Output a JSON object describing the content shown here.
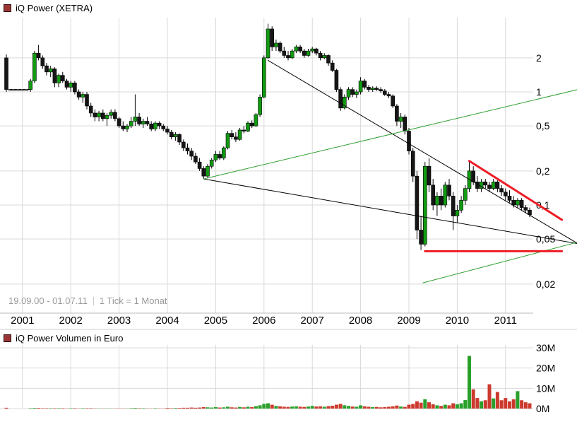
{
  "price_chart": {
    "legend": {
      "title": "iQ Power (XETRA)",
      "marker_color": "#9b3434"
    },
    "footer": {
      "range": "19.09.00 - 01.07.11",
      "tick_info": "1 Tick = 1 Monat"
    }
  },
  "volume_chart": {
    "legend": {
      "title": "iQ Power Volumen in Euro",
      "marker_color": "#9b3434"
    }
  },
  "chart_data": [
    {
      "type": "candlestick",
      "title": "iQ Power (XETRA)",
      "x_axis": {
        "first_candle": "2000-09",
        "last_candle": "2011-07",
        "tick_interval": "1 Monat",
        "year_labels": [
          "2001",
          "2002",
          "2003",
          "2004",
          "2005",
          "2006",
          "2007",
          "2008",
          "2009",
          "2010",
          "2011"
        ]
      },
      "y_axis": {
        "scale": "log",
        "tick_labels": [
          "2",
          "1",
          "0,5",
          "0,2",
          "0,1",
          "0,05",
          "0,02"
        ],
        "tick_values": [
          2,
          1,
          0.5,
          0.2,
          0.1,
          0.05,
          0.02
        ]
      },
      "colors": {
        "up_candle": "#119b11",
        "down_candle": "#161616",
        "volume_up": "#2aa02a",
        "volume_down": "#cc3a2e",
        "grid": "#d9d9d9",
        "axis_line": "#bbbbbb",
        "separator": "#cccccc",
        "trend_black": "#000000",
        "trend_green": "#2e9e2e",
        "trend_red": "#ee1c25",
        "axis_text": "#000000",
        "footer_text": "#9a9a9a",
        "legend_marker": "#9b3434"
      },
      "candles": [
        [
          "2000-09",
          2.0,
          2.15,
          1.0,
          1.05,
          0.4
        ],
        [
          "2000-10",
          1.05,
          1.05,
          1.05,
          1.05,
          0
        ],
        [
          "2000-11",
          1.05,
          1.05,
          1.05,
          1.05,
          0
        ],
        [
          "2000-12",
          1.05,
          1.05,
          1.05,
          1.05,
          0
        ],
        [
          "2001-01",
          1.05,
          1.05,
          1.05,
          1.05,
          0
        ],
        [
          "2001-02",
          1.05,
          1.05,
          1.05,
          1.05,
          0
        ],
        [
          "2001-03",
          1.05,
          1.3,
          1.0,
          1.25,
          0.2
        ],
        [
          "2001-04",
          1.25,
          2.3,
          1.2,
          2.2,
          0.3
        ],
        [
          "2001-05",
          2.2,
          2.6,
          1.9,
          2.0,
          0.3
        ],
        [
          "2001-06",
          2.0,
          2.1,
          1.6,
          1.7,
          0.2
        ],
        [
          "2001-07",
          1.7,
          1.8,
          1.4,
          1.5,
          0.2
        ],
        [
          "2001-08",
          1.5,
          1.7,
          1.35,
          1.6,
          0.2
        ],
        [
          "2001-09",
          1.6,
          1.65,
          1.1,
          1.2,
          0.2
        ],
        [
          "2001-10",
          1.2,
          1.45,
          1.1,
          1.4,
          0.2
        ],
        [
          "2001-11",
          1.4,
          1.5,
          1.2,
          1.25,
          0.2
        ],
        [
          "2001-12",
          1.25,
          1.3,
          1.05,
          1.1,
          0.1
        ],
        [
          "2002-01",
          1.1,
          1.25,
          1.0,
          1.2,
          0.2
        ],
        [
          "2002-02",
          1.2,
          1.25,
          0.95,
          1.0,
          0.2
        ],
        [
          "2002-03",
          1.0,
          1.05,
          0.85,
          0.9,
          0.1
        ],
        [
          "2002-04",
          0.9,
          1.0,
          0.8,
          0.95,
          0.2
        ],
        [
          "2002-05",
          0.95,
          1.0,
          0.7,
          0.75,
          0.2
        ],
        [
          "2002-06",
          0.75,
          0.8,
          0.6,
          0.65,
          0.2
        ],
        [
          "2002-07",
          0.65,
          0.7,
          0.55,
          0.6,
          0.1
        ],
        [
          "2002-08",
          0.6,
          0.68,
          0.55,
          0.65,
          0.1
        ],
        [
          "2002-09",
          0.65,
          0.7,
          0.55,
          0.58,
          0.1
        ],
        [
          "2002-10",
          0.58,
          0.65,
          0.5,
          0.62,
          0.1
        ],
        [
          "2002-11",
          0.62,
          0.7,
          0.58,
          0.66,
          0.1
        ],
        [
          "2002-12",
          0.66,
          0.7,
          0.55,
          0.58,
          0.1
        ],
        [
          "2003-01",
          0.58,
          0.6,
          0.48,
          0.5,
          0.1
        ],
        [
          "2003-02",
          0.5,
          0.55,
          0.45,
          0.47,
          0.1
        ],
        [
          "2003-03",
          0.47,
          0.52,
          0.44,
          0.5,
          0.1
        ],
        [
          "2003-04",
          0.5,
          0.6,
          0.48,
          0.55,
          0.2
        ],
        [
          "2003-05",
          0.55,
          0.95,
          0.5,
          0.6,
          0.3
        ],
        [
          "2003-06",
          0.6,
          0.65,
          0.5,
          0.52,
          0.2
        ],
        [
          "2003-07",
          0.52,
          0.58,
          0.48,
          0.55,
          0.2
        ],
        [
          "2003-08",
          0.55,
          0.6,
          0.5,
          0.52,
          0.1
        ],
        [
          "2003-09",
          0.52,
          0.55,
          0.45,
          0.47,
          0.1
        ],
        [
          "2003-10",
          0.47,
          0.55,
          0.45,
          0.53,
          0.2
        ],
        [
          "2003-11",
          0.53,
          0.55,
          0.47,
          0.5,
          0.1
        ],
        [
          "2003-12",
          0.5,
          0.52,
          0.45,
          0.47,
          0.1
        ],
        [
          "2004-01",
          0.47,
          0.5,
          0.42,
          0.44,
          0.3
        ],
        [
          "2004-02",
          0.44,
          0.46,
          0.38,
          0.4,
          0.2
        ],
        [
          "2004-03",
          0.4,
          0.44,
          0.37,
          0.42,
          0.3
        ],
        [
          "2004-04",
          0.42,
          0.43,
          0.34,
          0.36,
          0.3
        ],
        [
          "2004-05",
          0.36,
          0.38,
          0.3,
          0.32,
          0.4
        ],
        [
          "2004-06",
          0.32,
          0.35,
          0.28,
          0.3,
          0.4
        ],
        [
          "2004-07",
          0.3,
          0.32,
          0.25,
          0.27,
          0.5
        ],
        [
          "2004-08",
          0.27,
          0.29,
          0.23,
          0.24,
          0.4
        ],
        [
          "2004-09",
          0.24,
          0.26,
          0.2,
          0.21,
          0.5
        ],
        [
          "2004-10",
          0.21,
          0.22,
          0.17,
          0.18,
          0.7
        ],
        [
          "2004-11",
          0.18,
          0.23,
          0.175,
          0.22,
          0.6
        ],
        [
          "2004-12",
          0.22,
          0.26,
          0.21,
          0.25,
          0.5
        ],
        [
          "2005-01",
          0.25,
          0.3,
          0.24,
          0.28,
          0.7
        ],
        [
          "2005-02",
          0.28,
          0.3,
          0.25,
          0.26,
          0.5
        ],
        [
          "2005-03",
          0.26,
          0.33,
          0.25,
          0.32,
          0.6
        ],
        [
          "2005-04",
          0.32,
          0.45,
          0.31,
          0.43,
          0.9
        ],
        [
          "2005-05",
          0.43,
          0.46,
          0.38,
          0.4,
          0.6
        ],
        [
          "2005-06",
          0.4,
          0.44,
          0.36,
          0.38,
          0.5
        ],
        [
          "2005-07",
          0.38,
          0.48,
          0.37,
          0.46,
          0.8
        ],
        [
          "2005-08",
          0.46,
          0.5,
          0.43,
          0.45,
          0.6
        ],
        [
          "2005-09",
          0.45,
          0.55,
          0.44,
          0.53,
          0.9
        ],
        [
          "2005-10",
          0.53,
          0.56,
          0.48,
          0.5,
          0.7
        ],
        [
          "2005-11",
          0.5,
          0.65,
          0.49,
          0.63,
          1.2
        ],
        [
          "2005-12",
          0.63,
          0.95,
          0.6,
          0.9,
          1.6
        ],
        [
          "2006-01",
          0.9,
          2.1,
          0.88,
          2.0,
          2.3
        ],
        [
          "2006-02",
          2.0,
          4.0,
          1.95,
          3.6,
          2.6
        ],
        [
          "2006-03",
          3.6,
          3.8,
          2.3,
          2.5,
          1.9
        ],
        [
          "2006-04",
          2.5,
          2.9,
          2.3,
          2.7,
          1.3
        ],
        [
          "2006-05",
          2.7,
          2.8,
          2.2,
          2.3,
          1.1
        ],
        [
          "2006-06",
          2.3,
          2.5,
          2.0,
          2.1,
          0.9
        ],
        [
          "2006-07",
          2.1,
          2.3,
          1.9,
          2.0,
          0.8
        ],
        [
          "2006-08",
          2.0,
          2.4,
          1.95,
          2.3,
          1.0
        ],
        [
          "2006-09",
          2.3,
          2.6,
          2.2,
          2.5,
          1.1
        ],
        [
          "2006-10",
          2.5,
          2.6,
          2.2,
          2.3,
          0.9
        ],
        [
          "2006-11",
          2.3,
          2.4,
          2.0,
          2.1,
          0.8
        ],
        [
          "2006-12",
          2.1,
          2.4,
          2.05,
          2.3,
          1.0
        ],
        [
          "2007-01",
          2.3,
          2.5,
          2.2,
          2.4,
          1.3
        ],
        [
          "2007-02",
          2.4,
          2.45,
          2.1,
          2.2,
          1.0
        ],
        [
          "2007-03",
          2.2,
          2.3,
          1.9,
          2.0,
          1.1
        ],
        [
          "2007-04",
          2.0,
          2.2,
          1.95,
          2.1,
          0.9
        ],
        [
          "2007-05",
          2.1,
          2.15,
          1.7,
          1.8,
          1.2
        ],
        [
          "2007-06",
          1.8,
          1.9,
          1.5,
          1.55,
          1.4
        ],
        [
          "2007-07",
          1.55,
          1.6,
          1.0,
          1.05,
          1.9
        ],
        [
          "2007-08",
          1.05,
          1.1,
          0.68,
          0.72,
          2.3
        ],
        [
          "2007-09",
          0.72,
          0.95,
          0.7,
          0.9,
          1.6
        ],
        [
          "2007-10",
          0.9,
          1.1,
          0.85,
          1.05,
          1.3
        ],
        [
          "2007-11",
          1.05,
          1.1,
          0.9,
          0.95,
          1.0
        ],
        [
          "2007-12",
          0.95,
          1.05,
          0.88,
          1.0,
          0.9
        ],
        [
          "2008-01",
          1.0,
          1.35,
          0.95,
          1.25,
          1.6
        ],
        [
          "2008-02",
          1.25,
          1.3,
          1.05,
          1.1,
          1.1
        ],
        [
          "2008-03",
          1.1,
          1.15,
          1.0,
          1.05,
          0.9
        ],
        [
          "2008-04",
          1.05,
          1.12,
          1.0,
          1.08,
          0.7
        ],
        [
          "2008-05",
          1.08,
          1.12,
          1.02,
          1.05,
          0.8
        ],
        [
          "2008-06",
          1.05,
          1.1,
          0.98,
          1.02,
          0.6
        ],
        [
          "2008-07",
          1.02,
          1.06,
          0.92,
          0.95,
          0.7
        ],
        [
          "2008-08",
          0.95,
          1.0,
          0.88,
          0.92,
          0.9
        ],
        [
          "2008-09",
          0.92,
          0.95,
          0.72,
          0.75,
          1.1
        ],
        [
          "2008-10",
          0.75,
          0.78,
          0.5,
          0.55,
          1.5
        ],
        [
          "2008-11",
          0.55,
          0.65,
          0.48,
          0.6,
          1.0
        ],
        [
          "2008-12",
          0.6,
          0.63,
          0.42,
          0.45,
          0.8
        ],
        [
          "2009-01",
          0.45,
          0.48,
          0.28,
          0.3,
          1.9
        ],
        [
          "2009-02",
          0.3,
          0.32,
          0.16,
          0.18,
          2.3
        ],
        [
          "2009-03",
          0.18,
          0.2,
          0.05,
          0.06,
          3.6
        ],
        [
          "2009-04",
          0.06,
          0.08,
          0.04,
          0.045,
          2.9
        ],
        [
          "2009-05",
          0.045,
          0.24,
          0.043,
          0.22,
          4.6
        ],
        [
          "2009-06",
          0.22,
          0.26,
          0.13,
          0.15,
          3.1
        ],
        [
          "2009-07",
          0.15,
          0.17,
          0.09,
          0.1,
          2.1
        ],
        [
          "2009-08",
          0.1,
          0.13,
          0.08,
          0.12,
          1.6
        ],
        [
          "2009-09",
          0.12,
          0.14,
          0.09,
          0.1,
          1.3
        ],
        [
          "2009-10",
          0.1,
          0.16,
          0.095,
          0.15,
          1.9
        ],
        [
          "2009-11",
          0.15,
          0.17,
          0.11,
          0.12,
          1.6
        ],
        [
          "2009-12",
          0.12,
          0.13,
          0.06,
          0.08,
          2.6
        ],
        [
          "2010-01",
          0.08,
          0.1,
          0.07,
          0.09,
          2.1
        ],
        [
          "2010-02",
          0.09,
          0.12,
          0.085,
          0.11,
          2.6
        ],
        [
          "2010-03",
          0.11,
          0.15,
          0.1,
          0.14,
          4.2
        ],
        [
          "2010-04",
          0.14,
          0.24,
          0.13,
          0.2,
          26.0
        ],
        [
          "2010-05",
          0.2,
          0.22,
          0.15,
          0.16,
          9.5
        ],
        [
          "2010-06",
          0.16,
          0.18,
          0.13,
          0.14,
          5.2
        ],
        [
          "2010-07",
          0.14,
          0.17,
          0.13,
          0.16,
          3.6
        ],
        [
          "2010-08",
          0.16,
          0.17,
          0.14,
          0.15,
          4.1
        ],
        [
          "2010-09",
          0.15,
          0.16,
          0.13,
          0.14,
          12.0
        ],
        [
          "2010-10",
          0.14,
          0.17,
          0.135,
          0.16,
          5.0
        ],
        [
          "2010-11",
          0.16,
          0.165,
          0.13,
          0.14,
          8.2
        ],
        [
          "2010-12",
          0.14,
          0.15,
          0.12,
          0.13,
          4.1
        ],
        [
          "2011-01",
          0.13,
          0.14,
          0.11,
          0.12,
          5.2
        ],
        [
          "2011-02",
          0.12,
          0.135,
          0.105,
          0.11,
          3.6
        ],
        [
          "2011-03",
          0.11,
          0.12,
          0.095,
          0.1,
          4.6
        ],
        [
          "2011-04",
          0.1,
          0.115,
          0.095,
          0.11,
          8.6
        ],
        [
          "2011-05",
          0.11,
          0.115,
          0.09,
          0.095,
          4.1
        ],
        [
          "2011-06",
          0.095,
          0.1,
          0.085,
          0.09,
          3.1
        ],
        [
          "2011-07",
          0.09,
          0.095,
          0.078,
          0.082,
          2.6
        ]
      ],
      "trendlines": [
        {
          "name": "no-trade-dashed-segment",
          "color": "#000000",
          "width": 1,
          "dash": "3,3",
          "from": {
            "t": "2000-10",
            "p": 1.05
          },
          "to": {
            "t": "2001-03",
            "p": 1.05
          }
        },
        {
          "name": "downtrend-from-2006-high",
          "color": "#000000",
          "width": 1,
          "from": {
            "t": "2006-02",
            "p": 1.9
          },
          "to": {
            "t": 142,
            "p": 0.0455
          }
        },
        {
          "name": "downtrend-from-2004-low",
          "color": "#000000",
          "width": 1,
          "from": {
            "t": "2004-10",
            "p": 0.17
          },
          "to": {
            "t": 142,
            "p": 0.0455
          }
        },
        {
          "name": "uptrend-from-2004-low",
          "color": "#2e9e2e",
          "width": 1,
          "from": {
            "t": "2004-10",
            "p": 0.17
          },
          "to": {
            "t": 142,
            "p": 1.05
          }
        },
        {
          "name": "uptrend-from-2009-low",
          "color": "#2e9e2e",
          "width": 1,
          "from": {
            "t": 103.5,
            "p": 0.0205
          },
          "to": {
            "t": 142,
            "p": 0.047
          }
        },
        {
          "name": "red-falling-resistance",
          "color": "#ee1c25",
          "width": 3,
          "from": {
            "t": "2010-04",
            "p": 0.245
          },
          "to": {
            "t": 138,
            "p": 0.074
          }
        },
        {
          "name": "red-horizontal-support",
          "color": "#ee1c25",
          "width": 3,
          "from": {
            "t": 104,
            "p": 0.039
          },
          "to": {
            "t": 138,
            "p": 0.039
          }
        }
      ]
    },
    {
      "type": "bar",
      "title": "iQ Power Volumen in Euro",
      "y_axis": {
        "tick_labels": [
          "30M",
          "20M",
          "10M",
          "0M"
        ],
        "tick_values": [
          30,
          20,
          10,
          0
        ],
        "unit": "million EUR"
      },
      "values_source": "volume field (index 5) of chart_data[0].candles, in millions of EUR"
    }
  ]
}
